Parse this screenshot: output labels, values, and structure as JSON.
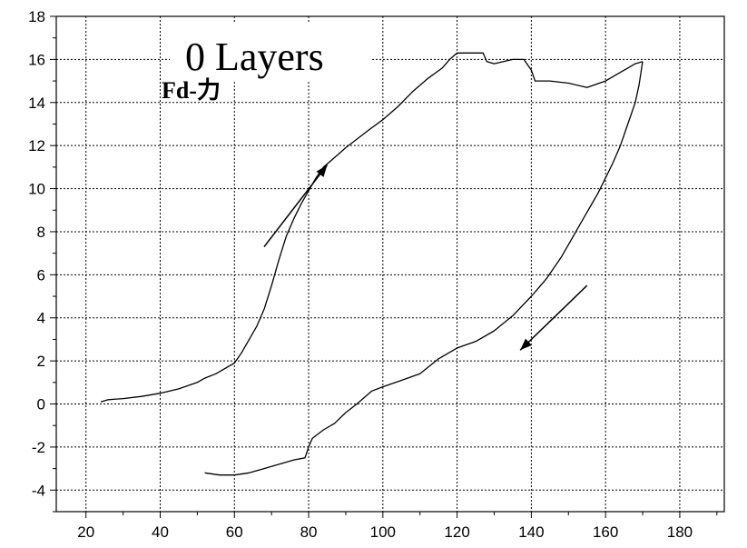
{
  "chart_data": {
    "type": "line",
    "title": "0 Layers",
    "subtitle": "Fd-力",
    "xlabel": "",
    "ylabel": "",
    "xlim": [
      12,
      192
    ],
    "ylim": [
      -5,
      18
    ],
    "x_ticks": [
      20,
      40,
      60,
      80,
      100,
      120,
      140,
      160,
      180
    ],
    "y_ticks": [
      -4,
      -2,
      0,
      2,
      4,
      6,
      8,
      10,
      12,
      14,
      16,
      18
    ],
    "grid": true,
    "legend": "none",
    "arrows": [
      {
        "direction": "loading",
        "from": [
          68,
          7.3
        ],
        "to": [
          85,
          11.1
        ]
      },
      {
        "direction": "unloading",
        "from": [
          155,
          5.5
        ],
        "to": [
          137,
          2.5
        ]
      }
    ],
    "series": [
      {
        "x": [
          24,
          26,
          30,
          35,
          40,
          45,
          50,
          52,
          55,
          58,
          60,
          62,
          64,
          66,
          68,
          70,
          72,
          74,
          76,
          78,
          80,
          82,
          84,
          86,
          88,
          90,
          93,
          96,
          100,
          104,
          108,
          112,
          116,
          118,
          120,
          124,
          127,
          128,
          130,
          135,
          138,
          140,
          141,
          145,
          150,
          155,
          160,
          164,
          166,
          168,
          170
        ],
        "y": [
          0.1,
          0.2,
          0.25,
          0.35,
          0.5,
          0.7,
          1.0,
          1.2,
          1.4,
          1.7,
          1.9,
          2.4,
          3.0,
          3.6,
          4.4,
          5.5,
          6.7,
          7.8,
          8.6,
          9.3,
          9.9,
          10.5,
          11.0,
          11.3,
          11.6,
          11.9,
          12.3,
          12.7,
          13.2,
          13.8,
          14.5,
          15.1,
          15.6,
          16.0,
          16.3,
          16.3,
          16.3,
          15.9,
          15.8,
          16.0,
          16.0,
          15.5,
          15.0,
          15.0,
          14.9,
          14.7,
          15.0,
          15.4,
          15.6,
          15.8,
          15.9
        ]
      },
      {
        "x": [
          170,
          169,
          168,
          166,
          164,
          162,
          160,
          158,
          156,
          154,
          152,
          150,
          148,
          146,
          144,
          142,
          140,
          135,
          130,
          125,
          120,
          115,
          110,
          105,
          100,
          97,
          95,
          93,
          90,
          87,
          84,
          81,
          80,
          79,
          76,
          72,
          68,
          64,
          60,
          56,
          52
        ],
        "y": [
          15.9,
          14.8,
          14.0,
          13.0,
          12.0,
          11.2,
          10.5,
          9.8,
          9.2,
          8.6,
          8.0,
          7.4,
          6.8,
          6.3,
          5.8,
          5.4,
          5.0,
          4.1,
          3.4,
          2.9,
          2.6,
          2.1,
          1.4,
          1.1,
          0.8,
          0.6,
          0.3,
          0.0,
          -0.4,
          -0.9,
          -1.2,
          -1.6,
          -2.0,
          -2.5,
          -2.6,
          -2.8,
          -3.0,
          -3.2,
          -3.3,
          -3.3,
          -3.2
        ]
      }
    ]
  }
}
